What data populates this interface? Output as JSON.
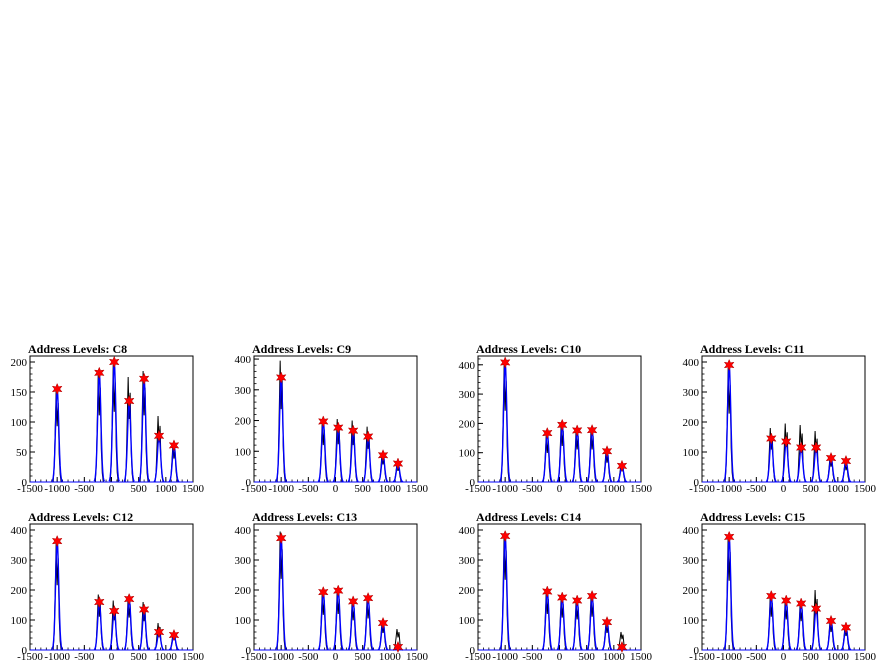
{
  "colors": {
    "histogram": "#000000",
    "fit": "#0000ff",
    "marker": "#ff0000",
    "frame": "#000000",
    "background": "#ffffff"
  },
  "chart_data": [
    {
      "type": "line",
      "title": "Address Levels: C8",
      "xlim": [
        -1500,
        1500
      ],
      "ylim": [
        0,
        210
      ],
      "xticks": [
        "-1500",
        "-1000",
        "-500",
        "0",
        "500",
        "1000",
        "1500"
      ],
      "yticks": [
        "0",
        "50",
        "100",
        "150",
        "200"
      ],
      "peaks": [
        {
          "x": -1000,
          "y": 155
        },
        {
          "x": -225,
          "y": 182
        },
        {
          "x": 50,
          "y": 200
        },
        {
          "x": 325,
          "y": 135
        },
        {
          "x": 600,
          "y": 172
        },
        {
          "x": 875,
          "y": 77
        },
        {
          "x": 1150,
          "y": 61
        }
      ],
      "hist_peaks": [
        {
          "x": -1000,
          "y": 155
        },
        {
          "x": -225,
          "y": 185
        },
        {
          "x": 50,
          "y": 195
        },
        {
          "x": 325,
          "y": 175
        },
        {
          "x": 600,
          "y": 185
        },
        {
          "x": 875,
          "y": 110
        },
        {
          "x": 1150,
          "y": 65
        }
      ]
    },
    {
      "type": "line",
      "title": "Address Levels: C9",
      "xlim": [
        -1500,
        1500
      ],
      "ylim": [
        0,
        410
      ],
      "xticks": [
        "-1500",
        "-1000",
        "-500",
        "0",
        "500",
        "1000",
        "1500"
      ],
      "yticks": [
        "0",
        "100",
        "200",
        "300",
        "400"
      ],
      "peaks": [
        {
          "x": -1000,
          "y": 340
        },
        {
          "x": -225,
          "y": 197
        },
        {
          "x": 50,
          "y": 177
        },
        {
          "x": 325,
          "y": 167
        },
        {
          "x": 600,
          "y": 148
        },
        {
          "x": 875,
          "y": 87
        },
        {
          "x": 1150,
          "y": 60
        }
      ],
      "hist_peaks": [
        {
          "x": -1000,
          "y": 395
        },
        {
          "x": -225,
          "y": 200
        },
        {
          "x": 50,
          "y": 205
        },
        {
          "x": 325,
          "y": 200
        },
        {
          "x": 600,
          "y": 180
        },
        {
          "x": 875,
          "y": 95
        },
        {
          "x": 1150,
          "y": 60
        }
      ]
    },
    {
      "type": "line",
      "title": "Address Levels: C10",
      "xlim": [
        -1500,
        1500
      ],
      "ylim": [
        0,
        430
      ],
      "xticks": [
        "-1500",
        "-1000",
        "-500",
        "0",
        "500",
        "1000",
        "1500"
      ],
      "yticks": [
        "0",
        "100",
        "200",
        "300",
        "400"
      ],
      "peaks": [
        {
          "x": -1000,
          "y": 408
        },
        {
          "x": -225,
          "y": 167
        },
        {
          "x": 50,
          "y": 195
        },
        {
          "x": 325,
          "y": 176
        },
        {
          "x": 600,
          "y": 177
        },
        {
          "x": 875,
          "y": 105
        },
        {
          "x": 1150,
          "y": 55
        }
      ],
      "hist_peaks": [
        {
          "x": -1000,
          "y": 405
        },
        {
          "x": -225,
          "y": 165
        },
        {
          "x": 50,
          "y": 205
        },
        {
          "x": 325,
          "y": 185
        },
        {
          "x": 600,
          "y": 185
        },
        {
          "x": 875,
          "y": 110
        },
        {
          "x": 1150,
          "y": 60
        }
      ]
    },
    {
      "type": "line",
      "title": "Address Levels: C11",
      "xlim": [
        -1500,
        1500
      ],
      "ylim": [
        0,
        420
      ],
      "xticks": [
        "-1500",
        "-1000",
        "-500",
        "0",
        "500",
        "1000",
        "1500"
      ],
      "yticks": [
        "0",
        "100",
        "200",
        "300",
        "400"
      ],
      "peaks": [
        {
          "x": -1000,
          "y": 390
        },
        {
          "x": -225,
          "y": 145
        },
        {
          "x": 50,
          "y": 135
        },
        {
          "x": 325,
          "y": 115
        },
        {
          "x": 600,
          "y": 115
        },
        {
          "x": 875,
          "y": 80
        },
        {
          "x": 1150,
          "y": 70
        }
      ],
      "hist_peaks": [
        {
          "x": -1000,
          "y": 380
        },
        {
          "x": -225,
          "y": 180
        },
        {
          "x": 50,
          "y": 195
        },
        {
          "x": 325,
          "y": 190
        },
        {
          "x": 600,
          "y": 170
        },
        {
          "x": 875,
          "y": 85
        },
        {
          "x": 1150,
          "y": 65
        }
      ]
    },
    {
      "type": "line",
      "title": "Address Levels: C12",
      "xlim": [
        -1500,
        1500
      ],
      "ylim": [
        0,
        420
      ],
      "xticks": [
        "-1500",
        "-1000",
        "-500",
        "0",
        "500",
        "1000",
        "1500"
      ],
      "yticks": [
        "0",
        "100",
        "200",
        "300",
        "400"
      ],
      "peaks": [
        {
          "x": -1000,
          "y": 363
        },
        {
          "x": -225,
          "y": 160
        },
        {
          "x": 50,
          "y": 130
        },
        {
          "x": 325,
          "y": 170
        },
        {
          "x": 600,
          "y": 135
        },
        {
          "x": 875,
          "y": 60
        },
        {
          "x": 1150,
          "y": 50
        }
      ],
      "hist_peaks": [
        {
          "x": -1000,
          "y": 360
        },
        {
          "x": -225,
          "y": 185
        },
        {
          "x": 50,
          "y": 165
        },
        {
          "x": 325,
          "y": 180
        },
        {
          "x": 600,
          "y": 160
        },
        {
          "x": 875,
          "y": 90
        },
        {
          "x": 1150,
          "y": 55
        }
      ]
    },
    {
      "type": "line",
      "title": "Address Levels: C13",
      "xlim": [
        -1500,
        1500
      ],
      "ylim": [
        0,
        420
      ],
      "xticks": [
        "-1500",
        "-1000",
        "-500",
        "0",
        "500",
        "1000",
        "1500"
      ],
      "yticks": [
        "0",
        "100",
        "200",
        "300",
        "400"
      ],
      "peaks": [
        {
          "x": -1000,
          "y": 373
        },
        {
          "x": -225,
          "y": 193
        },
        {
          "x": 50,
          "y": 198
        },
        {
          "x": 325,
          "y": 162
        },
        {
          "x": 600,
          "y": 173
        },
        {
          "x": 875,
          "y": 90
        },
        {
          "x": 1150,
          "y": 10
        }
      ],
      "hist_peaks": [
        {
          "x": -1000,
          "y": 395
        },
        {
          "x": -225,
          "y": 195
        },
        {
          "x": 50,
          "y": 200
        },
        {
          "x": 325,
          "y": 165
        },
        {
          "x": 600,
          "y": 175
        },
        {
          "x": 875,
          "y": 95
        },
        {
          "x": 1150,
          "y": 70
        }
      ]
    },
    {
      "type": "line",
      "title": "Address Levels: C14",
      "xlim": [
        -1500,
        1500
      ],
      "ylim": [
        0,
        420
      ],
      "xticks": [
        "-1500",
        "-1000",
        "-500",
        "0",
        "500",
        "1000",
        "1500"
      ],
      "yticks": [
        "0",
        "100",
        "200",
        "300",
        "400"
      ],
      "peaks": [
        {
          "x": -1000,
          "y": 380
        },
        {
          "x": -225,
          "y": 195
        },
        {
          "x": 50,
          "y": 175
        },
        {
          "x": 325,
          "y": 165
        },
        {
          "x": 600,
          "y": 180
        },
        {
          "x": 875,
          "y": 93
        },
        {
          "x": 1150,
          "y": 10
        }
      ],
      "hist_peaks": [
        {
          "x": -1000,
          "y": 390
        },
        {
          "x": -225,
          "y": 200
        },
        {
          "x": 50,
          "y": 180
        },
        {
          "x": 325,
          "y": 170
        },
        {
          "x": 600,
          "y": 185
        },
        {
          "x": 875,
          "y": 95
        },
        {
          "x": 1150,
          "y": 60
        }
      ]
    },
    {
      "type": "line",
      "title": "Address Levels: C15",
      "xlim": [
        -1500,
        1500
      ],
      "ylim": [
        0,
        420
      ],
      "xticks": [
        "-1500",
        "-1000",
        "-500",
        "0",
        "500",
        "1000",
        "1500"
      ],
      "yticks": [
        "0",
        "100",
        "200",
        "300",
        "400"
      ],
      "peaks": [
        {
          "x": -1000,
          "y": 377
        },
        {
          "x": -225,
          "y": 180
        },
        {
          "x": 50,
          "y": 165
        },
        {
          "x": 325,
          "y": 155
        },
        {
          "x": 600,
          "y": 138
        },
        {
          "x": 875,
          "y": 97
        },
        {
          "x": 1150,
          "y": 75
        }
      ],
      "hist_peaks": [
        {
          "x": -1000,
          "y": 385
        },
        {
          "x": -225,
          "y": 185
        },
        {
          "x": 50,
          "y": 170
        },
        {
          "x": 325,
          "y": 160
        },
        {
          "x": 600,
          "y": 200
        },
        {
          "x": 875,
          "y": 100
        },
        {
          "x": 1150,
          "y": 78
        }
      ]
    }
  ]
}
